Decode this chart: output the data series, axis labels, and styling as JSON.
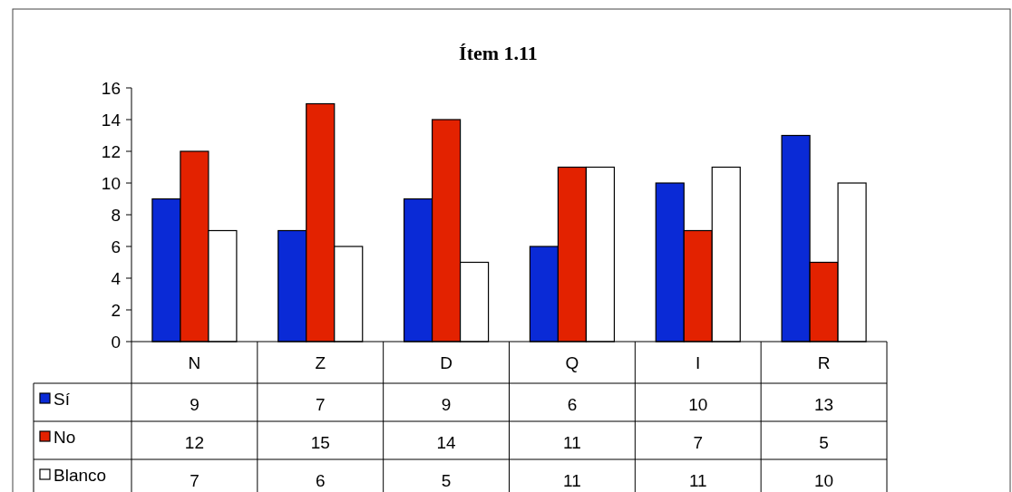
{
  "chart_data": {
    "type": "bar",
    "title": "Ítem 1.11",
    "categories": [
      "N",
      "Z",
      "D",
      "Q",
      "I",
      "R"
    ],
    "series": [
      {
        "name": "Sí",
        "color": "#0a2ad6",
        "values": [
          9,
          7,
          9,
          6,
          10,
          13
        ]
      },
      {
        "name": "No",
        "color": "#e32200",
        "values": [
          12,
          15,
          14,
          11,
          7,
          5
        ]
      },
      {
        "name": "Blanco",
        "color": "#ffffff",
        "values": [
          7,
          6,
          5,
          11,
          11,
          10
        ]
      }
    ],
    "ylim": [
      0,
      16
    ],
    "yticks": [
      0,
      2,
      4,
      6,
      8,
      10,
      12,
      14,
      16
    ],
    "grid": false,
    "legend": "bottom",
    "data_labels": true
  }
}
